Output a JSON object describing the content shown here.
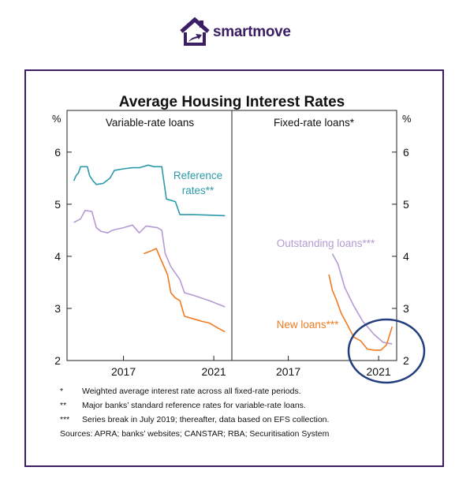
{
  "brand": {
    "name": "smartmove",
    "accent": "#3b1e63"
  },
  "chart_data": {
    "type": "line",
    "title": "Average Housing Interest Rates",
    "ylabel_left": "%",
    "ylabel_right": "%",
    "ylim": [
      2,
      6.8
    ],
    "yticks": [
      "2",
      "3",
      "4",
      "5",
      "6"
    ],
    "panels": [
      {
        "title": "Variable-rate loans",
        "xlim": [
          2015.0,
          2022.3
        ],
        "xticks": [
          "2017",
          "2021"
        ],
        "series": [
          {
            "name": "Reference rates**",
            "color": "#2b9aa8",
            "points": [
              [
                2015.3,
                5.45
              ],
              [
                2015.4,
                5.55
              ],
              [
                2015.5,
                5.6
              ],
              [
                2015.6,
                5.72
              ],
              [
                2015.9,
                5.72
              ],
              [
                2016.0,
                5.55
              ],
              [
                2016.15,
                5.45
              ],
              [
                2016.3,
                5.38
              ],
              [
                2016.6,
                5.4
              ],
              [
                2016.9,
                5.5
              ],
              [
                2017.1,
                5.65
              ],
              [
                2017.5,
                5.68
              ],
              [
                2017.9,
                5.7
              ],
              [
                2018.2,
                5.7
              ],
              [
                2018.6,
                5.75
              ],
              [
                2018.85,
                5.72
              ],
              [
                2019.2,
                5.72
              ],
              [
                2019.4,
                5.1
              ],
              [
                2019.8,
                5.05
              ],
              [
                2020.0,
                4.8
              ],
              [
                2020.6,
                4.8
              ],
              [
                2021.3,
                4.79
              ],
              [
                2022.0,
                4.78
              ]
            ]
          },
          {
            "name": "",
            "color": "#b49bd2",
            "points": [
              [
                2015.3,
                4.65
              ],
              [
                2015.6,
                4.72
              ],
              [
                2015.8,
                4.88
              ],
              [
                2016.1,
                4.86
              ],
              [
                2016.3,
                4.55
              ],
              [
                2016.5,
                4.48
              ],
              [
                2016.8,
                4.45
              ],
              [
                2017.0,
                4.5
              ],
              [
                2017.5,
                4.55
              ],
              [
                2017.9,
                4.6
              ],
              [
                2018.2,
                4.45
              ],
              [
                2018.5,
                4.58
              ],
              [
                2019.0,
                4.55
              ],
              [
                2019.2,
                4.5
              ],
              [
                2019.35,
                4.05
              ],
              [
                2019.6,
                3.8
              ],
              [
                2020.0,
                3.55
              ],
              [
                2020.2,
                3.3
              ],
              [
                2020.6,
                3.25
              ],
              [
                2021.3,
                3.15
              ],
              [
                2022.0,
                3.03
              ]
            ]
          },
          {
            "name": "",
            "color": "#f07b22",
            "points": [
              [
                2018.4,
                4.05
              ],
              [
                2018.7,
                4.1
              ],
              [
                2018.95,
                4.15
              ],
              [
                2019.2,
                3.9
              ],
              [
                2019.45,
                3.65
              ],
              [
                2019.6,
                3.3
              ],
              [
                2019.8,
                3.2
              ],
              [
                2020.0,
                3.15
              ],
              [
                2020.2,
                2.85
              ],
              [
                2020.6,
                2.8
              ],
              [
                2021.0,
                2.75
              ],
              [
                2021.3,
                2.72
              ],
              [
                2021.7,
                2.62
              ],
              [
                2022.0,
                2.55
              ]
            ]
          }
        ]
      },
      {
        "title": "Fixed-rate loans*",
        "xlim": [
          2015.0,
          2022.3
        ],
        "xticks": [
          "2017",
          "2021"
        ],
        "series": [
          {
            "name": "Outstanding loans***",
            "color": "#b49bd2",
            "points": [
              [
                2019.45,
                4.05
              ],
              [
                2019.7,
                3.85
              ],
              [
                2020.0,
                3.4
              ],
              [
                2020.4,
                3.05
              ],
              [
                2020.8,
                2.75
              ],
              [
                2021.3,
                2.5
              ],
              [
                2021.7,
                2.35
              ],
              [
                2022.1,
                2.32
              ]
            ]
          },
          {
            "name": "New loans***",
            "color": "#f07b22",
            "points": [
              [
                2019.3,
                3.65
              ],
              [
                2019.45,
                3.35
              ],
              [
                2019.6,
                3.2
              ],
              [
                2019.85,
                2.9
              ],
              [
                2020.1,
                2.7
              ],
              [
                2020.4,
                2.45
              ],
              [
                2020.7,
                2.38
              ],
              [
                2021.0,
                2.22
              ],
              [
                2021.3,
                2.2
              ],
              [
                2021.6,
                2.2
              ],
              [
                2021.85,
                2.3
              ],
              [
                2022.1,
                2.65
              ]
            ]
          }
        ]
      }
    ]
  },
  "footnotes": [
    {
      "mark": "*",
      "text": "Weighted average interest rate across all fixed-rate periods."
    },
    {
      "mark": "**",
      "text": "Major banks’ standard reference rates for variable-rate loans."
    },
    {
      "mark": "***",
      "text": "Series break in July 2019; thereafter, data based on EFS collection."
    }
  ],
  "sources": "Sources: APRA; banks’ websites; CANSTAR; RBA; Securitisation System",
  "annotation_color": "#233e7e"
}
